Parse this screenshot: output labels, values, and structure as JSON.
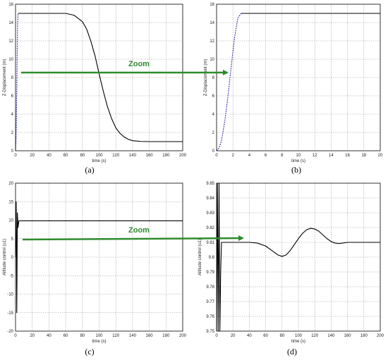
{
  "zoom_label": "Zoom",
  "arrow_color": "#2e8b2e",
  "chart_data": [
    {
      "id": "a",
      "type": "line",
      "caption": "(a)",
      "xlabel": "time (s)",
      "ylabel": "Z-Displacement (m)",
      "xlim": [
        0,
        200
      ],
      "ylim": [
        0,
        16
      ],
      "xticks": [
        0,
        20,
        40,
        60,
        80,
        100,
        120,
        140,
        160,
        180,
        200
      ],
      "yticks": [
        0,
        2,
        4,
        6,
        8,
        10,
        12,
        14,
        16
      ],
      "grid": true,
      "series": [
        {
          "color": "#000000",
          "dash": "solid",
          "x": [
            3,
            20,
            40,
            60,
            70,
            80,
            85,
            90,
            95,
            100,
            105,
            110,
            115,
            120,
            125,
            130,
            135,
            140,
            150,
            160,
            180,
            200
          ],
          "y": [
            15,
            15,
            15,
            15,
            14.8,
            14.1,
            13.3,
            12.0,
            10.4,
            8.4,
            6.5,
            4.8,
            3.5,
            2.5,
            1.9,
            1.5,
            1.25,
            1.1,
            1.02,
            1.0,
            1.0,
            1.0
          ]
        },
        {
          "color": "#3a3aa8",
          "dash": "dashed",
          "x": [
            0,
            0.5,
            1,
            1.5,
            2,
            2.5,
            3
          ],
          "y": [
            0,
            0.9,
            3.2,
            6.6,
            10.5,
            13.8,
            15
          ]
        }
      ]
    },
    {
      "id": "b",
      "type": "line",
      "caption": "(b)",
      "xlabel": "time (s)",
      "ylabel": "Z-Displacement (m)",
      "xlim": [
        0,
        20
      ],
      "ylim": [
        0,
        16
      ],
      "xticks": [
        0,
        2,
        4,
        6,
        8,
        10,
        12,
        14,
        16,
        18,
        20
      ],
      "yticks": [
        0,
        2,
        4,
        6,
        8,
        10,
        12,
        14,
        16
      ],
      "grid": true,
      "series": [
        {
          "color": "#000000",
          "dash": "solid",
          "x": [
            3,
            20
          ],
          "y": [
            15,
            15
          ]
        },
        {
          "color": "#3a3aa8",
          "dash": "dashed",
          "x": [
            0,
            0.3,
            0.6,
            1,
            1.4,
            1.8,
            2.2,
            2.6,
            3
          ],
          "y": [
            0,
            0.3,
            1.1,
            3.2,
            6.0,
            9.3,
            12.4,
            14.5,
            15
          ]
        }
      ]
    },
    {
      "id": "c",
      "type": "line",
      "caption": "(c)",
      "xlabel": "time (s)",
      "ylabel": "Altitude control (u1)",
      "xlim": [
        0,
        200
      ],
      "ylim": [
        -20,
        20
      ],
      "xticks": [
        0,
        20,
        40,
        60,
        80,
        100,
        120,
        140,
        160,
        180,
        200
      ],
      "yticks": [
        -20,
        -15,
        -10,
        -5,
        0,
        5,
        10,
        15,
        20
      ],
      "grid": true,
      "series": [
        {
          "color": "#000000",
          "dash": "solid",
          "x": [
            0,
            0.8,
            1.5,
            2.2,
            3,
            4,
            5,
            200
          ],
          "y": [
            0,
            15,
            -15,
            12,
            8,
            9.8,
            9.81,
            9.81
          ]
        }
      ]
    },
    {
      "id": "d",
      "type": "line",
      "caption": "(d)",
      "xlabel": "time (s)",
      "ylabel": "Altitude control (u1)",
      "xlim": [
        0,
        200
      ],
      "ylim": [
        9.75,
        9.85
      ],
      "xticks": [
        0,
        20,
        40,
        60,
        80,
        100,
        120,
        140,
        160,
        180,
        200
      ],
      "yticks": [
        9.75,
        9.76,
        9.77,
        9.78,
        9.79,
        9.8,
        9.81,
        9.82,
        9.83,
        9.84,
        9.85
      ],
      "grid": true,
      "series": [
        {
          "color": "#000000",
          "dash": "solid",
          "x": [
            0,
            1,
            2,
            3,
            4,
            5,
            6,
            10,
            20,
            40,
            50,
            60,
            65,
            70,
            75,
            80,
            85,
            90,
            95,
            100,
            105,
            110,
            115,
            120,
            125,
            130,
            135,
            140,
            145,
            150,
            160,
            170,
            180,
            200
          ],
          "y": [
            9.75,
            9.85,
            9.75,
            9.85,
            9.75,
            9.79,
            9.81,
            9.81,
            9.81,
            9.81,
            9.8095,
            9.8075,
            9.8055,
            9.8035,
            9.8015,
            9.8005,
            9.8015,
            9.8045,
            9.8085,
            9.8125,
            9.816,
            9.8185,
            9.8195,
            9.819,
            9.8175,
            9.815,
            9.8125,
            9.8105,
            9.8095,
            9.8092,
            9.81,
            9.81,
            9.81,
            9.81
          ]
        }
      ]
    }
  ]
}
